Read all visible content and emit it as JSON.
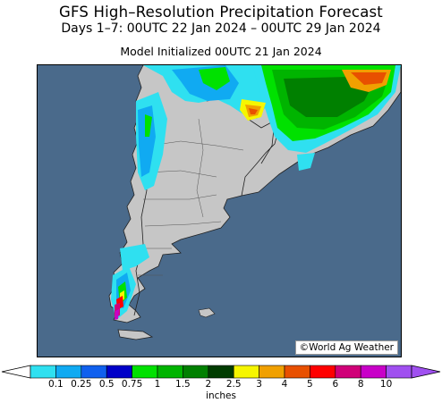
{
  "header": {
    "title": "GFS High–Resolution Precipitation Forecast",
    "subtitle": "Days 1–7: 00UTC 22 Jan 2024 – 00UTC 29 Jan 2024",
    "init": "Model Initialized 00UTC 21 Jan 2024"
  },
  "map": {
    "credit": "©World Ag Weather",
    "ocean_color": "#4a6a8b",
    "land_color": "#c6c6c6"
  },
  "colorbar": {
    "units": "inches",
    "colors": [
      "#2fe0f0",
      "#10aaf2",
      "#1060ee",
      "#0000c8",
      "#00e100",
      "#00b400",
      "#008000",
      "#003c00",
      "#f6f600",
      "#f0a000",
      "#e85000",
      "#ff0000",
      "#d00078",
      "#c800c8",
      "#a050f0"
    ],
    "ticks": [
      "0.1",
      "0.25",
      "0.5",
      "0.75",
      "1",
      "1.5",
      "2",
      "2.5",
      "3",
      "4",
      "5",
      "6",
      "8",
      "10"
    ]
  }
}
